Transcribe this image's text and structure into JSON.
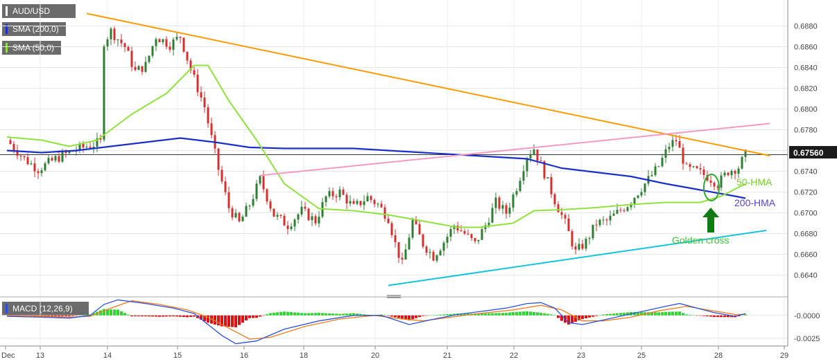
{
  "symbol": "AUD/USD",
  "legend": {
    "symbol_label": "AUD/USD",
    "sma200_label": "SMA (200,0)",
    "sma50_label": "SMA (50,0)",
    "macd_label": "MACD (12,26,9)"
  },
  "colors": {
    "up_candle": "#2e7d32",
    "down_candle": "#d32f2f",
    "hma200": "#1a2fc9",
    "hma50": "#8ee23b",
    "resistance_line": "#ff9900",
    "upper_channel": "#f49ac1",
    "support_line": "#14c4d8",
    "annotation_green": "#3fbf3f",
    "arrow": "#127a12",
    "macd_line": "#2a50e0",
    "signal_line": "#f07b1c",
    "hist_positive": "#2fd62f",
    "hist_negative": "#e01010",
    "price_tag_bg": "#1b1b1b"
  },
  "current_price_label": "0.67560",
  "annotations": {
    "hma50": "50-HMA",
    "hma200": "200-HMA",
    "golden_cross": "Golden cross"
  },
  "chart_data": [
    {
      "type": "candlestick",
      "title": "",
      "ylim": [
        0.6625,
        0.6905
      ],
      "y_ticks": [
        "0.6640",
        "0.6660",
        "0.6680",
        "0.6700",
        "0.6720",
        "0.6740",
        "0.6760",
        "0.6780",
        "0.6800",
        "0.6820",
        "0.6840",
        "0.6860",
        "0.6880"
      ],
      "x_ticks": [
        "Dec",
        "13",
        "14",
        "15",
        "16",
        "18",
        "20",
        "21",
        "22",
        "23",
        "25",
        "28",
        "29"
      ],
      "current_price": 0.6756,
      "close_path": [
        [
          0,
          0.677
        ],
        [
          5,
          0.6752
        ],
        [
          9,
          0.6742
        ],
        [
          14,
          0.6752
        ],
        [
          20,
          0.6761
        ],
        [
          24,
          0.6765
        ],
        [
          27,
          0.6768
        ],
        [
          28,
          0.6865
        ],
        [
          30,
          0.6875
        ],
        [
          34,
          0.686
        ],
        [
          37,
          0.6836
        ],
        [
          40,
          0.6842
        ],
        [
          43,
          0.687
        ],
        [
          47,
          0.6862
        ],
        [
          50,
          0.687
        ],
        [
          53,
          0.6838
        ],
        [
          57,
          0.6802
        ],
        [
          61,
          0.6742
        ],
        [
          64,
          0.6705
        ],
        [
          67,
          0.669
        ],
        [
          70,
          0.6708
        ],
        [
          73,
          0.6732
        ],
        [
          77,
          0.6698
        ],
        [
          81,
          0.6688
        ],
        [
          85,
          0.6702
        ],
        [
          89,
          0.6692
        ],
        [
          92,
          0.6715
        ],
        [
          96,
          0.672
        ],
        [
          100,
          0.6705
        ],
        [
          104,
          0.6715
        ],
        [
          107,
          0.6708
        ],
        [
          110,
          0.6695
        ],
        [
          112,
          0.667
        ],
        [
          114,
          0.665
        ],
        [
          117,
          0.6692
        ],
        [
          120,
          0.667
        ],
        [
          123,
          0.6658
        ],
        [
          126,
          0.6672
        ],
        [
          129,
          0.6688
        ],
        [
          132,
          0.668
        ],
        [
          135,
          0.667
        ],
        [
          138,
          0.6688
        ],
        [
          141,
          0.671
        ],
        [
          144,
          0.67
        ],
        [
          147,
          0.6725
        ],
        [
          150,
          0.6755
        ],
        [
          152,
          0.6762
        ],
        [
          155,
          0.6738
        ],
        [
          158,
          0.6712
        ],
        [
          161,
          0.669
        ],
        [
          164,
          0.6662
        ],
        [
          167,
          0.6672
        ],
        [
          170,
          0.669
        ],
        [
          173,
          0.6692
        ],
        [
          176,
          0.67
        ],
        [
          179,
          0.6708
        ],
        [
          182,
          0.672
        ],
        [
          185,
          0.6732
        ],
        [
          188,
          0.6745
        ],
        [
          191,
          0.6765
        ],
        [
          193,
          0.677
        ],
        [
          196,
          0.6742
        ],
        [
          199,
          0.674
        ],
        [
          202,
          0.6735
        ],
        [
          205,
          0.6728
        ],
        [
          208,
          0.674
        ],
        [
          211,
          0.6744
        ],
        [
          213,
          0.6756
        ]
      ],
      "series": [
        {
          "name": "200-HMA",
          "points": [
            [
              0,
              0.676
            ],
            [
              10,
              0.6758
            ],
            [
              20,
              0.676
            ],
            [
              30,
              0.6764
            ],
            [
              40,
              0.6768
            ],
            [
              50,
              0.6772
            ],
            [
              60,
              0.6768
            ],
            [
              70,
              0.6763
            ],
            [
              80,
              0.6762
            ],
            [
              90,
              0.6762
            ],
            [
              100,
              0.6762
            ],
            [
              110,
              0.676
            ],
            [
              120,
              0.6758
            ],
            [
              130,
              0.6756
            ],
            [
              140,
              0.6754
            ],
            [
              150,
              0.6752
            ],
            [
              160,
              0.6743
            ],
            [
              170,
              0.6739
            ],
            [
              180,
              0.6735
            ],
            [
              190,
              0.6728
            ],
            [
              200,
              0.6722
            ],
            [
              210,
              0.6716
            ],
            [
              213,
              0.6714
            ]
          ]
        },
        {
          "name": "50-HMA",
          "points": [
            [
              0,
              0.6773
            ],
            [
              10,
              0.677
            ],
            [
              18,
              0.6764
            ],
            [
              26,
              0.677
            ],
            [
              36,
              0.6795
            ],
            [
              46,
              0.6815
            ],
            [
              54,
              0.6842
            ],
            [
              58,
              0.6842
            ],
            [
              64,
              0.6808
            ],
            [
              72,
              0.677
            ],
            [
              80,
              0.6728
            ],
            [
              90,
              0.6704
            ],
            [
              100,
              0.6702
            ],
            [
              110,
              0.6698
            ],
            [
              120,
              0.6692
            ],
            [
              130,
              0.6686
            ],
            [
              136,
              0.6686
            ],
            [
              146,
              0.669
            ],
            [
              152,
              0.6702
            ],
            [
              160,
              0.6703
            ],
            [
              170,
              0.6705
            ],
            [
              180,
              0.6708
            ],
            [
              190,
              0.671
            ],
            [
              200,
              0.671
            ],
            [
              206,
              0.6716
            ],
            [
              213,
              0.6728
            ]
          ]
        },
        {
          "name": "resistance",
          "points": [
            [
              23,
              0.6892
            ],
            [
              220,
              0.6755
            ]
          ]
        },
        {
          "name": "upper channel",
          "points": [
            [
              73,
              0.6736
            ],
            [
              220,
              0.6786
            ]
          ]
        },
        {
          "name": "support",
          "points": [
            [
              110,
              0.663
            ],
            [
              219,
              0.6683
            ]
          ]
        }
      ]
    },
    {
      "type": "macd",
      "title": "MACD (12,26,9)",
      "ylim": [
        -0.0032,
        0.0018
      ],
      "y_ticks": [
        "-0.0000",
        "-0.0025"
      ],
      "macd_path": [
        [
          0,
          -0.0001
        ],
        [
          10,
          -0.0002
        ],
        [
          18,
          -0.0003
        ],
        [
          24,
          0.0
        ],
        [
          28,
          0.0012
        ],
        [
          32,
          0.0017
        ],
        [
          40,
          0.0013
        ],
        [
          48,
          0.0008
        ],
        [
          54,
          0.0002
        ],
        [
          58,
          -0.001
        ],
        [
          62,
          -0.0022
        ],
        [
          66,
          -0.0031
        ],
        [
          72,
          -0.0028
        ],
        [
          80,
          -0.0015
        ],
        [
          90,
          -0.0006
        ],
        [
          100,
          0.0
        ],
        [
          108,
          0.0
        ],
        [
          112,
          -0.0005
        ],
        [
          116,
          -0.001
        ],
        [
          122,
          -0.0005
        ],
        [
          130,
          0.0001
        ],
        [
          136,
          0.0004
        ],
        [
          144,
          0.0008
        ],
        [
          150,
          0.0013
        ],
        [
          154,
          0.0014
        ],
        [
          158,
          0.0008
        ],
        [
          162,
          -0.0008
        ],
        [
          166,
          -0.001
        ],
        [
          172,
          -0.0005
        ],
        [
          178,
          0.0
        ],
        [
          184,
          0.0005
        ],
        [
          190,
          0.001
        ],
        [
          194,
          0.0013
        ],
        [
          198,
          0.0009
        ],
        [
          204,
          0.0003
        ],
        [
          210,
          -0.0001
        ],
        [
          213,
          0.0002
        ]
      ],
      "signal_path": [
        [
          0,
          0.0
        ],
        [
          10,
          -0.0001
        ],
        [
          18,
          -0.0002
        ],
        [
          24,
          -0.0001
        ],
        [
          30,
          0.0008
        ],
        [
          36,
          0.0016
        ],
        [
          44,
          0.0012
        ],
        [
          52,
          0.0006
        ],
        [
          58,
          -0.0002
        ],
        [
          64,
          -0.0014
        ],
        [
          70,
          -0.0026
        ],
        [
          76,
          -0.0024
        ],
        [
          86,
          -0.0012
        ],
        [
          96,
          -0.0004
        ],
        [
          106,
          0.0
        ],
        [
          114,
          -0.0004
        ],
        [
          120,
          -0.0006
        ],
        [
          128,
          -0.0002
        ],
        [
          136,
          0.0002
        ],
        [
          146,
          0.0006
        ],
        [
          154,
          0.0011
        ],
        [
          160,
          0.0006
        ],
        [
          166,
          -0.0006
        ],
        [
          172,
          -0.0006
        ],
        [
          180,
          -0.0002
        ],
        [
          188,
          0.0005
        ],
        [
          196,
          0.001
        ],
        [
          202,
          0.0006
        ],
        [
          210,
          0.0001
        ],
        [
          213,
          0.0001
        ]
      ]
    }
  ]
}
